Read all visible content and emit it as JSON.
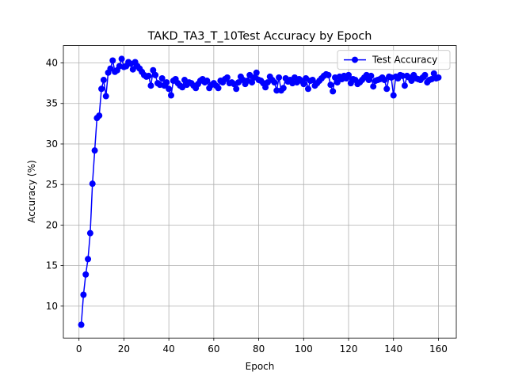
{
  "chart_data": {
    "type": "line",
    "title": "TAKD_TA3_T_10Test Accuracy by Epoch",
    "xlabel": "Epoch",
    "ylabel": "Accuracy (%)",
    "x": [
      1,
      2,
      3,
      4,
      5,
      6,
      7,
      8,
      9,
      10,
      11,
      12,
      13,
      14,
      15,
      16,
      17,
      18,
      19,
      20,
      21,
      22,
      23,
      24,
      25,
      26,
      27,
      28,
      29,
      30,
      31,
      32,
      33,
      34,
      35,
      36,
      37,
      38,
      39,
      40,
      41,
      42,
      43,
      44,
      45,
      46,
      47,
      48,
      49,
      50,
      51,
      52,
      53,
      54,
      55,
      56,
      57,
      58,
      59,
      60,
      61,
      62,
      63,
      64,
      65,
      66,
      67,
      68,
      69,
      70,
      71,
      72,
      73,
      74,
      75,
      76,
      77,
      78,
      79,
      80,
      81,
      82,
      83,
      84,
      85,
      86,
      87,
      88,
      89,
      90,
      91,
      92,
      93,
      94,
      95,
      96,
      97,
      98,
      99,
      100,
      101,
      102,
      103,
      104,
      105,
      106,
      107,
      108,
      109,
      110,
      111,
      112,
      113,
      114,
      115,
      116,
      117,
      118,
      119,
      120,
      121,
      122,
      123,
      124,
      125,
      126,
      127,
      128,
      129,
      130,
      131,
      132,
      133,
      134,
      135,
      136,
      137,
      138,
      139,
      140,
      141,
      142,
      143,
      144,
      145,
      146,
      147,
      148,
      149,
      150,
      151,
      152,
      153,
      154,
      155,
      156,
      157,
      158,
      159,
      160
    ],
    "series": [
      {
        "name": "Test Accuracy",
        "color": "#0000ff",
        "values": [
          7.7,
          11.4,
          13.9,
          15.8,
          19.0,
          25.1,
          29.2,
          33.2,
          33.5,
          36.8,
          37.9,
          35.9,
          38.8,
          39.3,
          40.3,
          38.9,
          39.1,
          39.6,
          40.5,
          39.5,
          39.6,
          40.1,
          39.9,
          39.2,
          40.1,
          39.6,
          39.3,
          38.9,
          38.5,
          38.3,
          38.4,
          37.2,
          39.1,
          38.5,
          37.5,
          37.3,
          38.1,
          37.2,
          37.6,
          36.8,
          36.0,
          37.8,
          38.0,
          37.5,
          37.2,
          37.0,
          37.9,
          37.3,
          37.6,
          37.5,
          37.2,
          36.9,
          37.4,
          37.8,
          38.0,
          37.6,
          37.8,
          36.9,
          37.3,
          37.5,
          37.2,
          36.9,
          37.8,
          37.6,
          38.0,
          38.2,
          37.5,
          37.6,
          37.4,
          36.8,
          37.6,
          38.3,
          37.9,
          37.4,
          37.8,
          38.5,
          37.6,
          38.2,
          38.8,
          37.9,
          37.8,
          37.5,
          37.0,
          37.6,
          38.3,
          37.9,
          37.6,
          36.6,
          38.2,
          36.6,
          36.9,
          38.1,
          37.7,
          37.9,
          37.5,
          38.2,
          37.6,
          38.0,
          37.8,
          37.4,
          38.1,
          36.8,
          37.8,
          37.9,
          37.2,
          37.5,
          37.8,
          38.1,
          38.4,
          38.6,
          38.5,
          37.3,
          36.5,
          38.2,
          37.6,
          38.3,
          38.0,
          38.4,
          38.1,
          38.5,
          37.5,
          38.0,
          37.9,
          37.4,
          37.6,
          37.9,
          38.2,
          38.5,
          37.9,
          38.4,
          37.1,
          37.8,
          37.9,
          38.0,
          38.2,
          37.9,
          36.8,
          38.3,
          38.2,
          36.0,
          38.3,
          38.1,
          38.5,
          38.4,
          37.2,
          38.4,
          38.2,
          37.8,
          38.5,
          38.1,
          38.0,
          37.9,
          38.2,
          38.5,
          37.6,
          37.9,
          38.0,
          38.7,
          38.1,
          38.2
        ]
      }
    ],
    "xlim": [
      -6.95,
      167.95
    ],
    "xticks": [
      0,
      20,
      40,
      60,
      80,
      100,
      120,
      140,
      160
    ],
    "ylim": [
      6.06,
      42.14
    ],
    "yticks": [
      10,
      15,
      20,
      25,
      30,
      35,
      40
    ],
    "grid": true,
    "legend": "upper right"
  }
}
